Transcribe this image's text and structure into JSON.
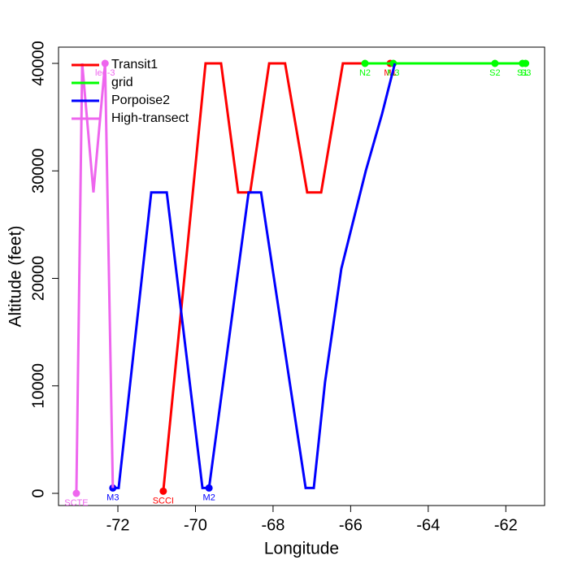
{
  "chart_data": {
    "type": "line",
    "x_label": "Longitude",
    "y_label": "Altitude (feet)",
    "xlim": [
      -73.53,
      -61.0
    ],
    "ylim": [
      -1134,
      41512
    ],
    "xticks": [
      -72,
      -70,
      -68,
      -66,
      -64,
      -62
    ],
    "yticks": [
      0,
      10000,
      20000,
      30000,
      40000
    ],
    "legend": "top-left",
    "series": [
      {
        "name": "Transit1",
        "color": "#ff0000",
        "x": [
          -70.83,
          -69.74,
          -69.34,
          -68.9,
          -68.59,
          -68.1,
          -67.69,
          -67.12,
          -66.76,
          -66.2,
          -64.98
        ],
        "values": [
          200,
          40000,
          40000,
          28000,
          28000,
          40000,
          40000,
          28000,
          28000,
          40000,
          40000
        ],
        "point_labels": [
          "SCCI",
          null,
          null,
          null,
          null,
          null,
          null,
          null,
          null,
          null,
          "M1"
        ]
      },
      {
        "name": "grid",
        "color": "#00ff00",
        "x": [
          -65.63,
          -64.9,
          -62.28,
          -61.57,
          -61.49
        ],
        "values": [
          40000,
          40000,
          40000,
          40000,
          40000
        ],
        "point_labels": [
          "N2",
          "M3",
          "S2",
          "S1",
          "S3"
        ]
      },
      {
        "name": "Porpoise2",
        "color": "#0000ff",
        "x": [
          -72.13,
          -71.98,
          -71.14,
          -70.74,
          -69.82,
          -69.65,
          -68.63,
          -68.31,
          -67.16,
          -66.95,
          -66.66,
          -66.24,
          -65.61,
          -65.19,
          -64.86
        ],
        "values": [
          500,
          500,
          28000,
          28000,
          500,
          500,
          28000,
          28000,
          500,
          500,
          10360,
          20900,
          30000,
          35300,
          40000
        ],
        "point_labels": [
          "M3",
          null,
          null,
          null,
          null,
          "M2",
          null,
          null,
          null,
          null,
          null,
          null,
          null,
          null,
          null
        ]
      },
      {
        "name": "High-transect",
        "color": "#ee66ee",
        "x": [
          -73.07,
          -72.92,
          -72.63,
          -72.33,
          -72.13
        ],
        "values": [
          0,
          40000,
          28000,
          40000,
          500
        ],
        "point_labels": [
          "SCTE",
          null,
          null,
          "leg-3",
          null
        ]
      }
    ]
  }
}
